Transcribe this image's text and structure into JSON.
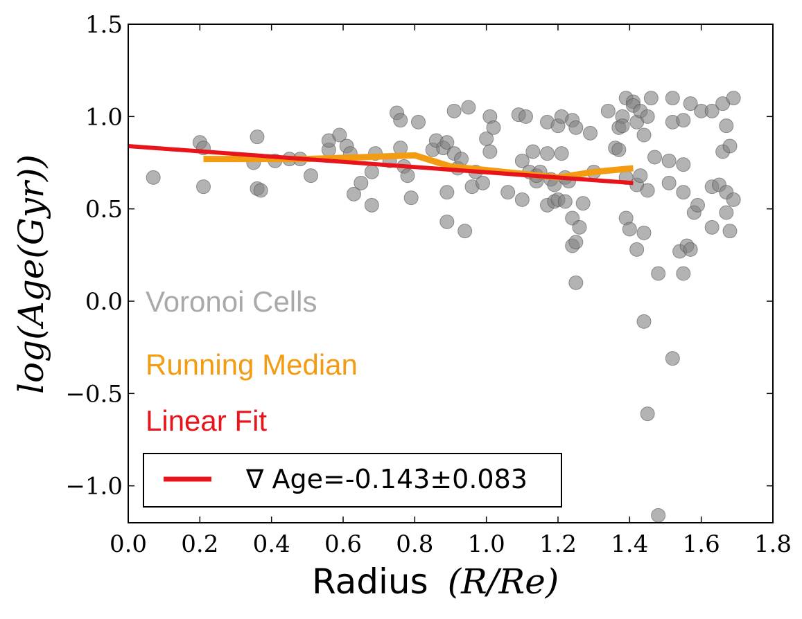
{
  "chart_data": {
    "type": "scatter",
    "title": "",
    "xlabel": "Radius (R/R_e)",
    "xlabel_text": "Radius",
    "xlabel_math": "(R/Re)",
    "ylabel": "log(Age(Gyr))",
    "xlim": [
      0.0,
      1.8
    ],
    "ylim": [
      -1.2,
      1.5
    ],
    "xticks": [
      0.0,
      0.2,
      0.4,
      0.6,
      0.8,
      1.0,
      1.2,
      1.4,
      1.6,
      1.8
    ],
    "xtick_labels": [
      "0.0",
      "0.2",
      "0.4",
      "0.6",
      "0.8",
      "1.0",
      "1.2",
      "1.4",
      "1.6",
      "1.8"
    ],
    "yticks": [
      -1.0,
      -0.5,
      0.0,
      0.5,
      1.0,
      1.5
    ],
    "ytick_labels": [
      "−1.0",
      "−0.5",
      "0.0",
      "0.5",
      "1.0",
      "1.5"
    ],
    "grid": false,
    "annotations": {
      "voronoi": "Voronoi Cells",
      "median": "Running Median",
      "fit": "Linear Fit"
    },
    "legend": {
      "position": "lower-left",
      "label": "∇ Age=-0.143±0.083"
    },
    "series": [
      {
        "name": "Voronoi Cells",
        "kind": "scatter",
        "color": "#808080",
        "points": [
          [
            0.07,
            0.67
          ],
          [
            0.2,
            0.86
          ],
          [
            0.21,
            0.83
          ],
          [
            0.21,
            0.62
          ],
          [
            0.35,
            0.75
          ],
          [
            0.36,
            0.61
          ],
          [
            0.37,
            0.6
          ],
          [
            0.36,
            0.89
          ],
          [
            0.41,
            0.76
          ],
          [
            0.45,
            0.77
          ],
          [
            0.48,
            0.77
          ],
          [
            0.51,
            0.68
          ],
          [
            0.56,
            0.82
          ],
          [
            0.56,
            0.87
          ],
          [
            0.59,
            0.9
          ],
          [
            0.61,
            0.84
          ],
          [
            0.62,
            0.8
          ],
          [
            0.63,
            0.58
          ],
          [
            0.65,
            0.64
          ],
          [
            0.68,
            0.7
          ],
          [
            0.68,
            0.52
          ],
          [
            0.69,
            0.8
          ],
          [
            0.73,
            0.76
          ],
          [
            0.75,
            1.02
          ],
          [
            0.76,
            0.98
          ],
          [
            0.76,
            0.83
          ],
          [
            0.77,
            0.73
          ],
          [
            0.78,
            0.68
          ],
          [
            0.79,
            0.56
          ],
          [
            0.81,
            0.97
          ],
          [
            0.85,
            0.82
          ],
          [
            0.86,
            0.87
          ],
          [
            0.88,
            0.83
          ],
          [
            0.89,
            0.86
          ],
          [
            0.89,
            0.59
          ],
          [
            0.89,
            0.43
          ],
          [
            0.91,
            1.03
          ],
          [
            0.91,
            0.8
          ],
          [
            0.92,
            0.72
          ],
          [
            0.93,
            0.77
          ],
          [
            0.94,
            0.38
          ],
          [
            0.95,
            1.05
          ],
          [
            0.96,
            0.62
          ],
          [
            0.97,
            0.7
          ],
          [
            0.99,
            0.64
          ],
          [
            1.0,
            0.88
          ],
          [
            1.01,
            1.0
          ],
          [
            1.01,
            0.81
          ],
          [
            1.02,
            0.94
          ],
          [
            1.06,
            0.59
          ],
          [
            1.09,
            1.01
          ],
          [
            1.1,
            0.76
          ],
          [
            1.1,
            0.55
          ],
          [
            1.11,
            1.0
          ],
          [
            1.12,
            0.7
          ],
          [
            1.13,
            0.81
          ],
          [
            1.14,
            0.65
          ],
          [
            1.14,
            0.68
          ],
          [
            1.15,
            0.7
          ],
          [
            1.17,
            0.97
          ],
          [
            1.17,
            0.8
          ],
          [
            1.17,
            0.52
          ],
          [
            1.18,
            0.66
          ],
          [
            1.19,
            0.63
          ],
          [
            1.19,
            0.54
          ],
          [
            1.2,
            0.95
          ],
          [
            1.2,
            0.55
          ],
          [
            1.21,
            1.0
          ],
          [
            1.21,
            0.8
          ],
          [
            1.22,
            0.67
          ],
          [
            1.22,
            0.54
          ],
          [
            1.23,
            0.65
          ],
          [
            1.24,
            0.98
          ],
          [
            1.24,
            0.45
          ],
          [
            1.24,
            0.3
          ],
          [
            1.25,
            0.94
          ],
          [
            1.25,
            0.32
          ],
          [
            1.25,
            0.1
          ],
          [
            1.26,
            0.4
          ],
          [
            1.27,
            0.53
          ],
          [
            1.29,
            0.91
          ],
          [
            1.3,
            0.7
          ],
          [
            1.34,
            1.03
          ],
          [
            1.36,
            0.83
          ],
          [
            1.37,
            0.94
          ],
          [
            1.37,
            0.82
          ],
          [
            1.38,
            1.0
          ],
          [
            1.38,
            0.95
          ],
          [
            1.39,
            1.1
          ],
          [
            1.39,
            0.45
          ],
          [
            1.39,
            0.67
          ],
          [
            1.4,
            0.39
          ],
          [
            1.41,
            1.08
          ],
          [
            1.41,
            1.06
          ],
          [
            1.42,
            0.97
          ],
          [
            1.42,
            0.63
          ],
          [
            1.42,
            0.28
          ],
          [
            1.43,
            0.68
          ],
          [
            1.43,
            1.03
          ],
          [
            1.44,
            0.9
          ],
          [
            1.44,
            -0.11
          ],
          [
            1.44,
            0.37
          ],
          [
            1.45,
            1.0
          ],
          [
            1.45,
            0.6
          ],
          [
            1.45,
            -0.61
          ],
          [
            1.46,
            1.1
          ],
          [
            1.47,
            0.78
          ],
          [
            1.48,
            0.15
          ],
          [
            1.48,
            -1.16
          ],
          [
            1.51,
            0.76
          ],
          [
            1.51,
            0.64
          ],
          [
            1.52,
            1.1
          ],
          [
            1.52,
            0.97
          ],
          [
            1.52,
            -0.31
          ],
          [
            1.54,
            0.27
          ],
          [
            1.55,
            0.98
          ],
          [
            1.55,
            0.74
          ],
          [
            1.55,
            0.59
          ],
          [
            1.55,
            0.15
          ],
          [
            1.56,
            0.3
          ],
          [
            1.57,
            0.28
          ],
          [
            1.57,
            1.07
          ],
          [
            1.58,
            0.48
          ],
          [
            1.59,
            0.52
          ],
          [
            1.6,
            1.03
          ],
          [
            1.63,
            1.03
          ],
          [
            1.63,
            0.62
          ],
          [
            1.63,
            0.4
          ],
          [
            1.65,
            0.63
          ],
          [
            1.66,
            0.81
          ],
          [
            1.66,
            1.07
          ],
          [
            1.67,
            0.95
          ],
          [
            1.67,
            0.48
          ],
          [
            1.67,
            0.59
          ],
          [
            1.68,
            0.84
          ],
          [
            1.68,
            0.38
          ],
          [
            1.69,
            1.1
          ],
          [
            1.69,
            0.55
          ]
        ]
      },
      {
        "name": "Running Median",
        "kind": "line",
        "color": "#F39C12",
        "points": [
          [
            0.21,
            0.77
          ],
          [
            0.24,
            0.77
          ],
          [
            0.5,
            0.77
          ],
          [
            0.8,
            0.79
          ],
          [
            0.9,
            0.73
          ],
          [
            1.1,
            0.69
          ],
          [
            1.2,
            0.67
          ],
          [
            1.3,
            0.7
          ],
          [
            1.41,
            0.72
          ]
        ]
      },
      {
        "name": "Linear Fit",
        "kind": "line",
        "color": "#E8141C",
        "points": [
          [
            0.0,
            0.84
          ],
          [
            1.41,
            0.64
          ]
        ]
      }
    ]
  },
  "colors": {
    "scatter": "#808080",
    "median": "#F39C12",
    "fit": "#E8141C",
    "voronoi_text": "#A9A9A9"
  }
}
